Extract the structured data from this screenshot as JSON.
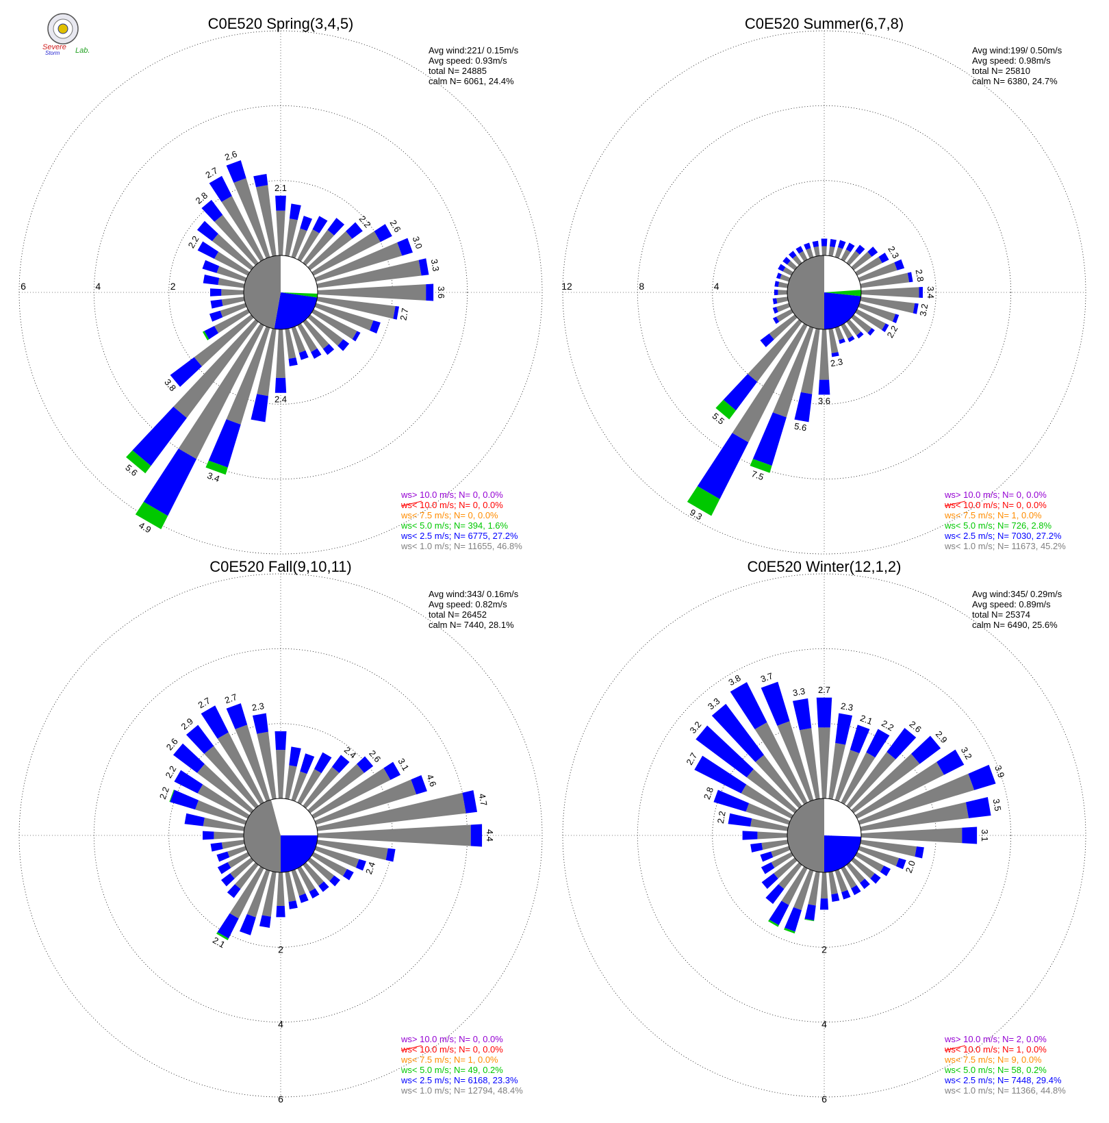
{
  "logo": {
    "text1": "Severe",
    "text2": "Storm",
    "text3": "Lab."
  },
  "colors": {
    "calm": "#808080",
    "lt1": "#808080",
    "lt2_5": "#0000ff",
    "lt5": "#00c800",
    "lt7_5": "#ff8c00",
    "lt10": "#ff0000",
    "gt10": "#9400d3",
    "axis": "#000000"
  },
  "chart_data": [
    {
      "type": "wind-rose",
      "title": "C0E520 Spring(3,4,5)",
      "ring_labels": [
        "2",
        "4",
        "6"
      ],
      "ring_label_side": "west",
      "ring_max": 6,
      "stats": [
        "Avg wind:221/ 0.15m/s",
        "Avg speed: 0.93m/s",
        "total N=       24885",
        "calm N=   6061,  24.4%"
      ],
      "legend": [
        {
          "text": "ws> 10.0 m/s; N=      0,  0.0%",
          "color": "#9400d3"
        },
        {
          "text": "ws< 10.0 m/s; N=      0,  0.0%",
          "color": "#ff0000"
        },
        {
          "text": "ws<  7.5 m/s; N=      0,  0.0%",
          "color": "#ff8c00"
        },
        {
          "text": "ws<  5.0 m/s; N=   394,  1.6%",
          "color": "#00c800"
        },
        {
          "text": "ws<  2.5 m/s; N=  6775, 27.2%",
          "color": "#0000ff"
        },
        {
          "text": "ws<  1.0 m/s; N= 11655, 46.8%",
          "color": "#808080"
        }
      ],
      "calm_sectors": [
        [
          0,
          92,
          "#ffffff"
        ],
        [
          92,
          98,
          "#00c800"
        ],
        [
          98,
          190,
          "#0000ff"
        ],
        [
          190,
          360,
          "#808080"
        ]
      ],
      "directions": [
        0,
        10,
        20,
        30,
        40,
        50,
        60,
        70,
        80,
        90,
        100,
        110,
        120,
        130,
        140,
        150,
        160,
        170,
        180,
        190,
        200,
        210,
        220,
        230,
        240,
        250,
        260,
        270,
        280,
        290,
        300,
        310,
        320,
        330,
        340,
        350
      ],
      "gray": [
        1.2,
        1.0,
        0.8,
        0.9,
        1.1,
        1.4,
        2.0,
        2.4,
        2.8,
        2.9,
        2.1,
        1.6,
        1.3,
        1.1,
        0.9,
        0.8,
        0.7,
        0.8,
        1.3,
        1.8,
        2.7,
        4.0,
        3.2,
        1.9,
        1.0,
        0.7,
        0.6,
        0.6,
        0.7,
        0.8,
        1.0,
        1.3,
        1.6,
        1.9,
        2.2,
        1.9
      ],
      "blue": [
        0.4,
        0.4,
        0.35,
        0.4,
        0.4,
        0.35,
        0.35,
        0.3,
        0.2,
        0.2,
        0.1,
        0.2,
        0.1,
        0.2,
        0.2,
        0.2,
        0.2,
        0.2,
        0.4,
        0.7,
        1.2,
        1.7,
        1.6,
        0.8,
        0.3,
        0.3,
        0.3,
        0.3,
        0.4,
        0.4,
        0.5,
        0.5,
        0.5,
        0.6,
        0.5,
        0.3
      ],
      "green": [
        0,
        0,
        0,
        0,
        0,
        0,
        0,
        0,
        0,
        0,
        0,
        0,
        0,
        0,
        0,
        0,
        0,
        0,
        0,
        0,
        0.2,
        0.4,
        0.25,
        0,
        0.05,
        0,
        0,
        0,
        0,
        0,
        0,
        0,
        0,
        0,
        0,
        0
      ],
      "peak_labels": [
        [
          0,
          "2.1"
        ],
        [
          50,
          "2.2"
        ],
        [
          60,
          "2.6"
        ],
        [
          70,
          "3.0"
        ],
        [
          80,
          "3.3"
        ],
        [
          90,
          "3.6"
        ],
        [
          100,
          "2.7"
        ],
        [
          180,
          "2.4"
        ],
        [
          200,
          "3.4"
        ],
        [
          210,
          "4.9"
        ],
        [
          220,
          "5.6"
        ],
        [
          230,
          "3.8"
        ],
        [
          300,
          "2.2"
        ],
        [
          320,
          "2.8"
        ],
        [
          330,
          "2.7"
        ],
        [
          340,
          "2.6"
        ]
      ]
    },
    {
      "type": "wind-rose",
      "title": "C0E520 Summer(6,7,8)",
      "ring_labels": [
        "4",
        "8",
        "12"
      ],
      "ring_label_side": "west",
      "ring_max": 12,
      "stats": [
        "Avg wind:199/ 0.50m/s",
        "Avg speed: 0.98m/s",
        "total N=       25810",
        "calm N=   6380,  24.7%"
      ],
      "legend": [
        {
          "text": "ws> 10.0 m/s; N=      0,  0.0%",
          "color": "#9400d3"
        },
        {
          "text": "ws< 10.0 m/s; N=      0,  0.0%",
          "color": "#ff0000"
        },
        {
          "text": "ws<  7.5 m/s; N=      1,  0.0%",
          "color": "#ff8c00"
        },
        {
          "text": "ws<  5.0 m/s; N=   726,  2.8%",
          "color": "#00c800"
        },
        {
          "text": "ws<  2.5 m/s; N=  7030, 27.2%",
          "color": "#0000ff"
        },
        {
          "text": "ws<  1.0 m/s; N= 11673, 45.2%",
          "color": "#808080"
        }
      ],
      "calm_sectors": [
        [
          0,
          86,
          "#ffffff"
        ],
        [
          86,
          96,
          "#00c800"
        ],
        [
          96,
          180,
          "#0000ff"
        ],
        [
          180,
          360,
          "#808080"
        ]
      ],
      "directions": [
        0,
        10,
        20,
        30,
        40,
        50,
        60,
        70,
        80,
        90,
        100,
        110,
        120,
        130,
        140,
        150,
        160,
        170,
        180,
        190,
        200,
        210,
        220,
        230,
        240,
        250,
        260,
        270,
        280,
        290,
        300,
        310,
        320,
        330,
        340,
        350
      ],
      "gray": [
        0.5,
        0.5,
        0.55,
        0.6,
        0.8,
        1.2,
        1.5,
        2.1,
        2.6,
        3.1,
        2.9,
        2.0,
        1.7,
        1.2,
        0.9,
        0.8,
        0.7,
        1.3,
        2.7,
        3.5,
        5.0,
        7.0,
        4.0,
        1.7,
        0.9,
        0.7,
        0.6,
        0.5,
        0.5,
        0.5,
        0.5,
        0.5,
        0.5,
        0.5,
        0.5,
        0.5
      ],
      "blue": [
        0.4,
        0.4,
        0.4,
        0.4,
        0.4,
        0.4,
        0.4,
        0.4,
        0.2,
        0.2,
        0.2,
        0.2,
        0.2,
        0.2,
        0.2,
        0.2,
        0.2,
        0.2,
        0.8,
        1.5,
        2.7,
        3.4,
        1.9,
        0.6,
        0.2,
        0.2,
        0.2,
        0.2,
        0.2,
        0.2,
        0.3,
        0.3,
        0.3,
        0.3,
        0.3,
        0.3
      ],
      "green": [
        0,
        0,
        0,
        0,
        0,
        0,
        0,
        0,
        0,
        0,
        0,
        0,
        0,
        0,
        0,
        0,
        0,
        0,
        0,
        0,
        0.4,
        1.0,
        0.6,
        0,
        0,
        0,
        0,
        0,
        0,
        0,
        0,
        0,
        0,
        0,
        0,
        0
      ],
      "peak_labels": [
        [
          60,
          "2.3"
        ],
        [
          80,
          "2.8"
        ],
        [
          90,
          "3.4"
        ],
        [
          100,
          "3.2"
        ],
        [
          120,
          "2.2"
        ],
        [
          170,
          "2.3"
        ],
        [
          180,
          "3.6"
        ],
        [
          190,
          "5.6"
        ],
        [
          200,
          "7.5"
        ],
        [
          210,
          "9.3"
        ],
        [
          220,
          "5.5"
        ]
      ]
    },
    {
      "type": "wind-rose",
      "title": "C0E520 Fall(9,10,11)",
      "ring_labels": [
        "2",
        "4",
        "6"
      ],
      "ring_label_side": "south",
      "ring_max": 6,
      "stats": [
        "Avg wind:343/ 0.16m/s",
        "Avg speed: 0.82m/s",
        "total N=       26452",
        "calm N=   7440,  28.1%"
      ],
      "legend": [
        {
          "text": "ws> 10.0 m/s; N=      0,  0.0%",
          "color": "#9400d3"
        },
        {
          "text": "ws< 10.0 m/s; N=      0,  0.0%",
          "color": "#ff0000"
        },
        {
          "text": "ws<  7.5 m/s; N=      1,  0.0%",
          "color": "#ff8c00"
        },
        {
          "text": "ws<  5.0 m/s; N=    49,  0.2%",
          "color": "#00c800"
        },
        {
          "text": "ws<  2.5 m/s; N=  6168, 23.3%",
          "color": "#0000ff"
        },
        {
          "text": "ws<  1.0 m/s; N= 12794, 48.4%",
          "color": "#808080"
        }
      ],
      "calm_sectors": [
        [
          0,
          90,
          "#ffffff"
        ],
        [
          90,
          180,
          "#0000ff"
        ],
        [
          180,
          345,
          "#808080"
        ],
        [
          345,
          360,
          "#ffffff"
        ]
      ],
      "directions": [
        0,
        10,
        20,
        30,
        40,
        50,
        60,
        70,
        80,
        90,
        100,
        110,
        120,
        130,
        140,
        150,
        160,
        170,
        180,
        190,
        200,
        210,
        220,
        230,
        240,
        250,
        260,
        270,
        280,
        290,
        300,
        310,
        320,
        330,
        340,
        350
      ],
      "gray": [
        1.3,
        0.9,
        0.8,
        1.0,
        1.3,
        1.8,
        2.3,
        2.8,
        4.0,
        4.1,
        1.9,
        1.2,
        1.0,
        0.8,
        0.7,
        0.7,
        0.7,
        0.8,
        0.9,
        1.2,
        1.3,
        1.5,
        0.8,
        0.7,
        0.6,
        0.5,
        0.6,
        0.8,
        1.1,
        1.4,
        1.5,
        1.8,
        2.0,
        2.1,
        2.1,
        1.8
      ],
      "blue": [
        0.5,
        0.5,
        0.5,
        0.5,
        0.4,
        0.3,
        0.3,
        0.3,
        0.3,
        0.3,
        0.2,
        0.2,
        0.2,
        0.2,
        0.2,
        0.2,
        0.2,
        0.2,
        0.3,
        0.3,
        0.5,
        0.6,
        0.3,
        0.3,
        0.3,
        0.3,
        0.3,
        0.3,
        0.5,
        0.7,
        0.7,
        0.8,
        0.7,
        0.8,
        0.6,
        0.5
      ],
      "green": [
        0,
        0,
        0,
        0,
        0,
        0,
        0,
        0,
        0,
        0,
        0,
        0,
        0,
        0,
        0,
        0,
        0,
        0,
        0,
        0,
        0,
        0.05,
        0,
        0,
        0,
        0,
        0,
        0,
        0,
        0.02,
        0,
        0,
        0,
        0,
        0,
        0
      ],
      "peak_labels": [
        [
          40,
          "2.4"
        ],
        [
          50,
          "2.6"
        ],
        [
          60,
          "3.1"
        ],
        [
          70,
          "4.6"
        ],
        [
          80,
          "4.7"
        ],
        [
          90,
          "4.4"
        ],
        [
          110,
          "2.4"
        ],
        [
          210,
          "2.1"
        ],
        [
          290,
          "2.2"
        ],
        [
          300,
          "2.2"
        ],
        [
          310,
          "2.6"
        ],
        [
          320,
          "2.9"
        ],
        [
          330,
          "2.7"
        ],
        [
          340,
          "2.7"
        ],
        [
          350,
          "2.3"
        ]
      ]
    },
    {
      "type": "wind-rose",
      "title": "C0E520 Winter(12,1,2)",
      "ring_labels": [
        "2",
        "4",
        "6"
      ],
      "ring_label_side": "south",
      "ring_max": 6,
      "stats": [
        "Avg wind:345/ 0.29m/s",
        "Avg speed: 0.89m/s",
        "total N=       25374",
        "calm N=   6490,  25.6%"
      ],
      "legend": [
        {
          "text": "ws> 10.0 m/s; N=      2,  0.0%",
          "color": "#9400d3"
        },
        {
          "text": "ws< 10.0 m/s; N=      1,  0.0%",
          "color": "#ff0000"
        },
        {
          "text": "ws<  7.5 m/s; N=      9,  0.0%",
          "color": "#ff8c00"
        },
        {
          "text": "ws<  5.0 m/s; N=    58,  0.2%",
          "color": "#00c800"
        },
        {
          "text": "ws<  2.5 m/s; N=  7448, 29.4%",
          "color": "#0000ff"
        },
        {
          "text": "ws<  1.0 m/s; N= 11366, 44.8%",
          "color": "#808080"
        }
      ],
      "calm_sectors": [
        [
          0,
          92,
          "#ffffff"
        ],
        [
          92,
          180,
          "#0000ff"
        ],
        [
          180,
          360,
          "#808080"
        ]
      ],
      "directions": [
        0,
        10,
        20,
        30,
        40,
        50,
        60,
        70,
        80,
        90,
        100,
        110,
        120,
        130,
        140,
        150,
        160,
        170,
        180,
        190,
        200,
        210,
        220,
        230,
        240,
        250,
        260,
        270,
        280,
        290,
        300,
        310,
        320,
        330,
        340,
        350
      ],
      "gray": [
        1.9,
        1.5,
        1.4,
        1.5,
        1.8,
        2.2,
        2.6,
        3.2,
        2.9,
        2.7,
        1.5,
        1.1,
        0.8,
        0.7,
        0.6,
        0.6,
        0.6,
        0.6,
        0.7,
        0.9,
        1.1,
        1.1,
        0.8,
        0.7,
        0.6,
        0.5,
        0.7,
        0.8,
        1.0,
        1.2,
        1.5,
        1.6,
        1.7,
        2.4,
        2.2,
        1.9
      ],
      "blue": [
        0.8,
        0.8,
        0.7,
        0.7,
        0.8,
        0.7,
        0.6,
        0.6,
        0.6,
        0.4,
        0.2,
        0.2,
        0.2,
        0.2,
        0.2,
        0.2,
        0.2,
        0.2,
        0.3,
        0.4,
        0.6,
        0.6,
        0.5,
        0.4,
        0.3,
        0.3,
        0.3,
        0.4,
        0.6,
        0.9,
        1.4,
        1.7,
        1.7,
        1.2,
        1.1,
        0.8
      ],
      "green": [
        0,
        0,
        0,
        0,
        0,
        0,
        0,
        0,
        0,
        0,
        0,
        0,
        0,
        0,
        0,
        0,
        0,
        0,
        0,
        0.02,
        0.05,
        0.05,
        0,
        0,
        0,
        0,
        0,
        0,
        0,
        0,
        0,
        0,
        0,
        0,
        0,
        0
      ],
      "peak_labels": [
        [
          0,
          "2.7"
        ],
        [
          10,
          "2.3"
        ],
        [
          20,
          "2.1"
        ],
        [
          30,
          "2.2"
        ],
        [
          40,
          "2.6"
        ],
        [
          50,
          "2.9"
        ],
        [
          60,
          "3.2"
        ],
        [
          70,
          "3.9"
        ],
        [
          80,
          "3.5"
        ],
        [
          90,
          "3.1"
        ],
        [
          110,
          "2.0"
        ],
        [
          280,
          "2.2"
        ],
        [
          290,
          "2.8"
        ],
        [
          300,
          "2.7"
        ],
        [
          310,
          "3.2"
        ],
        [
          320,
          "3.3"
        ],
        [
          330,
          "3.8"
        ],
        [
          340,
          "3.7"
        ],
        [
          350,
          "3.3"
        ]
      ]
    }
  ]
}
